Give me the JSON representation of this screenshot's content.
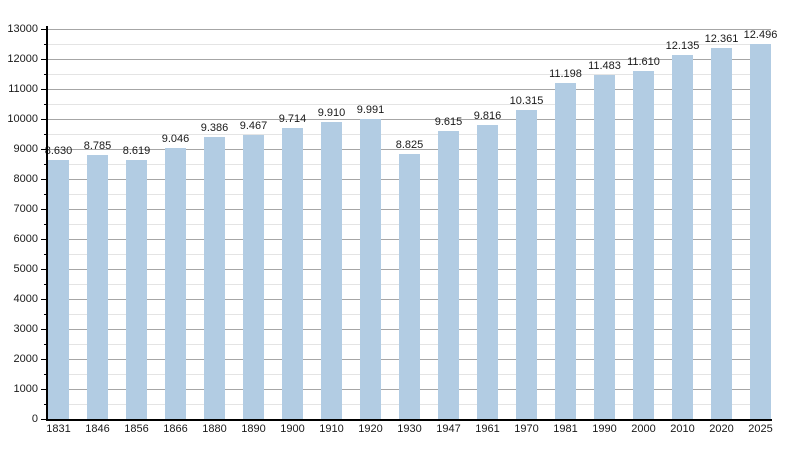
{
  "chart_data": {
    "type": "bar",
    "title": "",
    "xlabel": "",
    "ylabel": "",
    "categories": [
      "1831",
      "1846",
      "1856",
      "1866",
      "1880",
      "1890",
      "1900",
      "1910",
      "1920",
      "1930",
      "1947",
      "1961",
      "1970",
      "1981",
      "1990",
      "2000",
      "2010",
      "2020",
      "2025"
    ],
    "values": [
      8630,
      8785,
      8619,
      9046,
      9386,
      9467,
      9714,
      9910,
      9991,
      8825,
      9615,
      9816,
      10315,
      11198,
      11483,
      11610,
      12135,
      12361,
      12496
    ],
    "value_labels": [
      "8.630",
      "8.785",
      "8.619",
      "9.046",
      "9.386",
      "9.467",
      "9.714",
      "9.910",
      "9.991",
      "8.825",
      "9.615",
      "9.816",
      "10.315",
      "11.198",
      "11.483",
      "11.610",
      "12.135",
      "12.361",
      "12.496"
    ],
    "ylim": [
      0,
      13000
    ],
    "y_major_step": 1000,
    "y_minor_step": 500,
    "y_tick_labels": [
      "0",
      "1000",
      "2000",
      "3000",
      "4000",
      "5000",
      "6000",
      "7000",
      "8000",
      "9000",
      "10000",
      "11000",
      "12000",
      "13000"
    ],
    "grid": "horizontal major and minor, drawn behind opaque bars",
    "legend": "none",
    "colors": {
      "bar_fill": "#b2cce3",
      "major_grid": "#a6a6a6",
      "minor_grid": "#e4e4e4",
      "axis": "#000000",
      "label_text": "#1a1a1a",
      "background": "#ffffff"
    }
  }
}
